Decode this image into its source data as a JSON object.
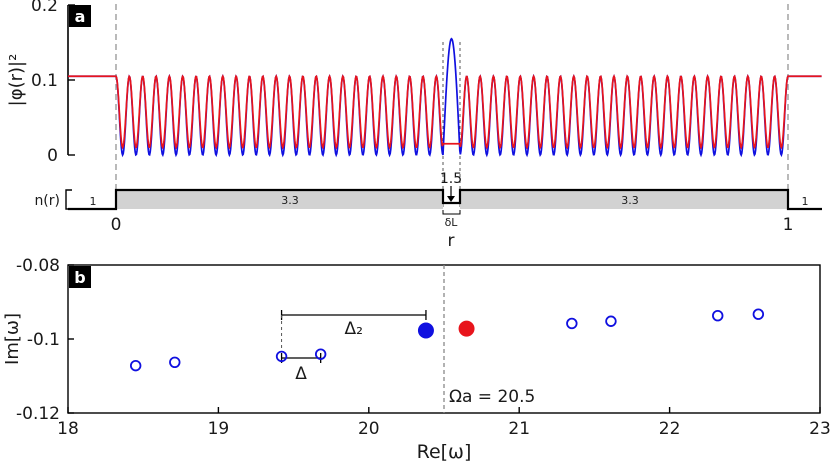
{
  "chart_data": [
    {
      "id": "a",
      "type": "line",
      "panel_label": "a",
      "ylabel": "|φ(r)|²",
      "xlabel": "r",
      "yticks": [
        "0.2",
        "0.1",
        "0"
      ],
      "ylim": [
        0,
        0.2
      ],
      "xlim": [
        -0.02,
        1.02
      ],
      "series": [
        {
          "color": "#e8141c",
          "description_values": {
            "outside_level": 0.105,
            "oscillation_min": 0.01,
            "oscillation_max": 0.105
          }
        },
        {
          "color": "#1010e0",
          "description_values": {
            "oscillation_min": 0,
            "oscillation_max": 0.105,
            "center_peak": 0.155
          }
        }
      ],
      "oscillations_per_side": 24,
      "refractive_index": {
        "label": "n(r)",
        "outside_left": "1",
        "slab_left": "3.3",
        "gap": "1.5",
        "slab_right": "3.3",
        "outside_right": "1",
        "gap_label": "δL",
        "x_start_label": "0",
        "x_end_label": "1",
        "boundaries": [
          0,
          0.49,
          0.51,
          1
        ]
      }
    },
    {
      "id": "b",
      "type": "scatter",
      "panel_label": "b",
      "xlabel": "Re[ω]",
      "ylabel": "Im[ω]",
      "xlim": [
        18,
        23
      ],
      "ylim": [
        -0.12,
        -0.08
      ],
      "xticks": [
        18,
        19,
        20,
        21,
        22,
        23
      ],
      "yticks": [
        -0.08,
        -0.1,
        -0.12
      ],
      "ytick_labels": [
        "-0.08",
        "-0.1",
        "-0.12"
      ],
      "points": [
        {
          "x": 18.45,
          "y": -0.1072,
          "style": "open",
          "color": "#1010e0"
        },
        {
          "x": 18.71,
          "y": -0.1063,
          "style": "open",
          "color": "#1010e0"
        },
        {
          "x": 19.42,
          "y": -0.1047,
          "style": "open",
          "color": "#1010e0"
        },
        {
          "x": 19.68,
          "y": -0.1041,
          "style": "open",
          "color": "#1010e0"
        },
        {
          "x": 20.38,
          "y": -0.0977,
          "style": "filled",
          "color": "#1010e0"
        },
        {
          "x": 20.65,
          "y": -0.0972,
          "style": "filled",
          "color": "#e8141c"
        },
        {
          "x": 21.35,
          "y": -0.0958,
          "style": "open",
          "color": "#1010e0"
        },
        {
          "x": 21.61,
          "y": -0.0952,
          "style": "open",
          "color": "#1010e0"
        },
        {
          "x": 22.32,
          "y": -0.0937,
          "style": "open",
          "color": "#1010e0"
        },
        {
          "x": 22.59,
          "y": -0.0933,
          "style": "open",
          "color": "#1010e0"
        }
      ],
      "reference_line": {
        "x": 20.5,
        "label": "Ωa = 20.5"
      },
      "annotations": [
        {
          "label": "Δ₂",
          "x_from": 19.42,
          "x_to": 20.38
        },
        {
          "label": "Δ",
          "x_from": 19.42,
          "x_to": 19.68
        }
      ]
    }
  ]
}
